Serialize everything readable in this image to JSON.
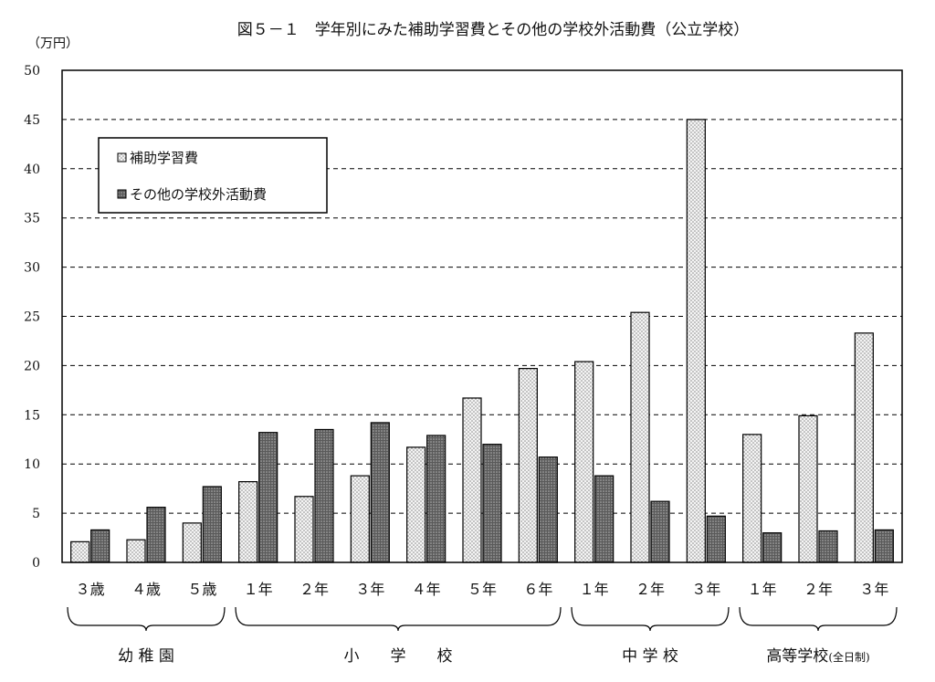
{
  "chart_data": {
    "type": "bar",
    "title": "図５－１　学年別にみた補助学習費とその他の学校外活動費（公立学校）",
    "ylabel": "（万円）",
    "ylim": [
      0,
      50
    ],
    "yticks": [
      0,
      5,
      10,
      15,
      20,
      25,
      30,
      35,
      40,
      45,
      50
    ],
    "grid": "horizontal-dashed",
    "legend_position": "top-left",
    "categories": [
      "３歳",
      "４歳",
      "５歳",
      "１年",
      "２年",
      "３年",
      "４年",
      "５年",
      "６年",
      "１年",
      "２年",
      "３年",
      "１年",
      "２年",
      "３年"
    ],
    "series": [
      {
        "name": "補助学習費",
        "color": "#e6e6e6",
        "pattern": "light-dotted",
        "values": [
          2.1,
          2.3,
          4.0,
          8.2,
          6.7,
          8.8,
          11.7,
          16.7,
          19.7,
          20.4,
          25.4,
          45.0,
          13.0,
          14.9,
          23.3
        ]
      },
      {
        "name": "その他の学校外活動費",
        "color": "#707070",
        "pattern": "dark-dotted",
        "values": [
          3.3,
          5.6,
          7.7,
          13.2,
          13.5,
          14.2,
          12.9,
          12.0,
          10.7,
          8.8,
          6.2,
          4.7,
          3.0,
          3.2,
          3.3
        ]
      }
    ],
    "groups": [
      {
        "label": "幼 稚 園",
        "start": 0,
        "end": 2
      },
      {
        "label": "小　　学　　校",
        "start": 3,
        "end": 8
      },
      {
        "label": "中 学 校",
        "start": 9,
        "end": 11
      },
      {
        "label": "高等学校",
        "note": "(全日制)",
        "start": 12,
        "end": 14
      }
    ]
  }
}
